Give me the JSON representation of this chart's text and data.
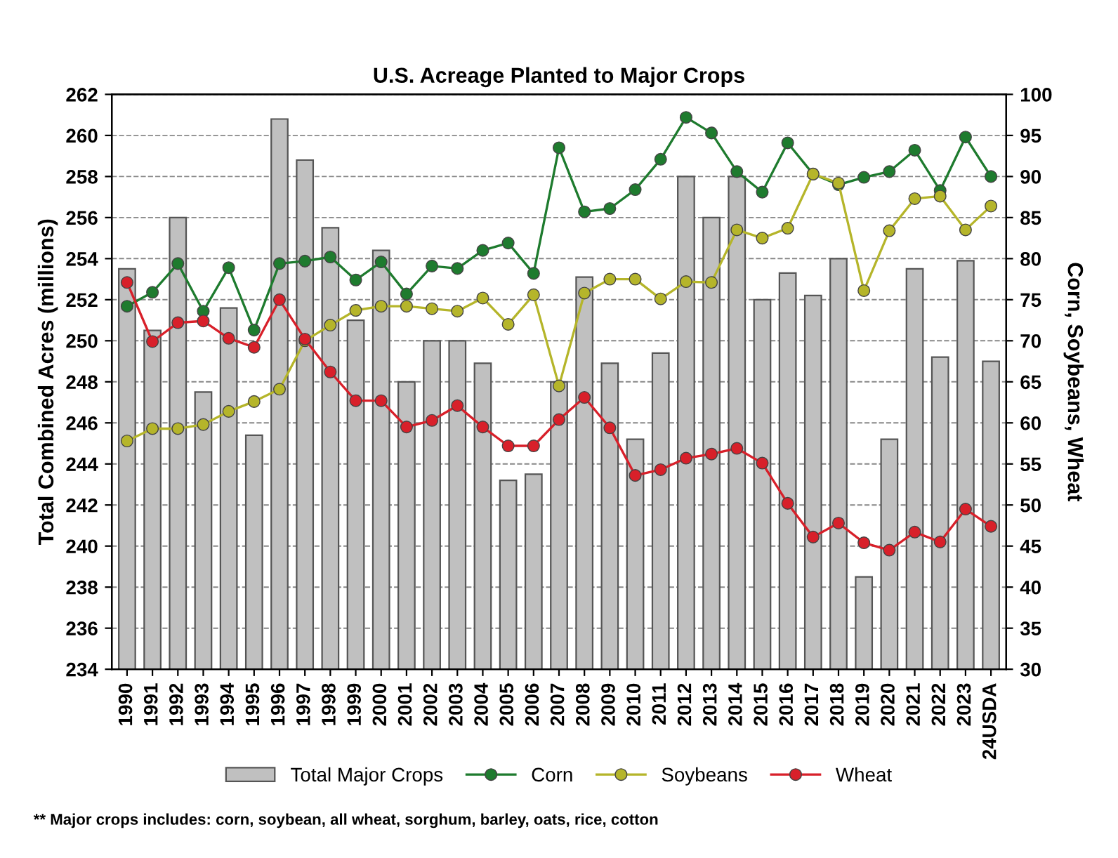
{
  "chart_data": {
    "type": "bar",
    "title": "U.S. Acreage Planted to Major Crops",
    "ylabel": "Total Combined Acres (millions)",
    "y2label": "Corn, Soybeans, Wheat",
    "categories": [
      "1990",
      "1991",
      "1992",
      "1993",
      "1994",
      "1995",
      "1996",
      "1997",
      "1998",
      "1999",
      "2000",
      "2001",
      "2002",
      "2003",
      "2004",
      "2005",
      "2006",
      "2007",
      "2008",
      "2009",
      "2010",
      "2011",
      "2012",
      "2013",
      "2014",
      "2015",
      "2016",
      "2017",
      "2018",
      "2019",
      "2020",
      "2021",
      "2022",
      "2023",
      "24USDA"
    ],
    "series": [
      {
        "name": "Total Major Crops",
        "color": "#c0c0c0",
        "values": [
          253.5,
          250.5,
          256,
          247.5,
          251.6,
          245.4,
          260.8,
          258.8,
          255.5,
          251,
          254.4,
          248,
          250,
          250,
          248.9,
          243.2,
          243.5,
          248,
          253.1,
          248.9,
          245.2,
          249.4,
          258,
          256,
          258,
          252,
          253.3,
          252.2,
          254,
          238.5,
          245.2,
          253.5,
          249.2,
          253.9,
          249
        ]
      },
      {
        "name": "Corn",
        "type": "line",
        "axis": "y2",
        "color": "#1e7b2e",
        "values": [
          74.2,
          75.9,
          79.4,
          73.6,
          78.9,
          71.3,
          79.4,
          79.7,
          80.2,
          77.4,
          79.6,
          75.7,
          79.1,
          78.8,
          81,
          81.9,
          78.2,
          93.5,
          85.7,
          86.1,
          88.4,
          92.1,
          97.2,
          95.3,
          90.6,
          88.1,
          94.1,
          90.3,
          89,
          89.9,
          90.6,
          93.2,
          88.3,
          94.8,
          90
        ]
      },
      {
        "name": "Soybeans",
        "type": "line",
        "axis": "y2",
        "color": "#b5b52a",
        "values": [
          57.8,
          59.3,
          59.3,
          59.8,
          61.4,
          62.6,
          64.1,
          70,
          71.9,
          73.7,
          74.2,
          74.2,
          73.9,
          73.6,
          75.2,
          72,
          75.6,
          64.5,
          75.8,
          77.5,
          77.5,
          75.1,
          77.2,
          77.1,
          83.5,
          82.5,
          83.7,
          90.3,
          89.2,
          76.1,
          83.4,
          87.3,
          87.6,
          83.5,
          86.4
        ]
      },
      {
        "name": "Wheat",
        "type": "line",
        "axis": "y2",
        "color": "#d8202a",
        "values": [
          77.1,
          69.9,
          72.2,
          72.4,
          70.3,
          69.2,
          75,
          70.2,
          66.2,
          62.7,
          62.7,
          59.5,
          60.3,
          62.1,
          59.5,
          57.2,
          57.2,
          60.4,
          63.1,
          59.4,
          53.6,
          54.3,
          55.7,
          56.2,
          56.9,
          55.1,
          50.2,
          46.1,
          47.8,
          45.4,
          44.5,
          46.7,
          45.5,
          49.5,
          47.4
        ]
      }
    ],
    "ylim": [
      234,
      262
    ],
    "yticks": [
      234,
      236,
      238,
      240,
      242,
      244,
      246,
      248,
      250,
      252,
      254,
      256,
      258,
      260,
      262
    ],
    "y2lim": [
      30,
      100
    ],
    "y2ticks": [
      30,
      35,
      40,
      45,
      50,
      55,
      60,
      65,
      70,
      75,
      80,
      85,
      90,
      95,
      100
    ],
    "grid": "y",
    "legend": "bottom",
    "marker": "circle",
    "line_style": "solid",
    "annotations": [
      "** Major crops includes: corn, soybean, all wheat, sorghum, barley, oats, rice, cotton"
    ]
  }
}
